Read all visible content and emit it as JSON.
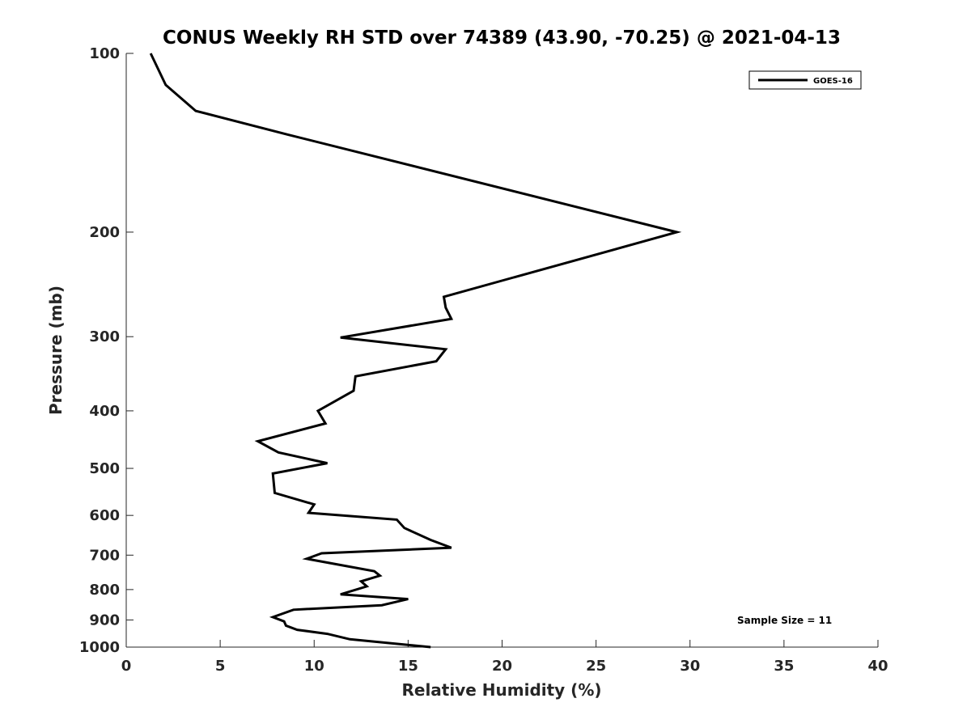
{
  "chart_data": {
    "type": "line",
    "title": "CONUS Weekly RH STD over 74389 (43.90, -70.25) @ 2021-04-13",
    "xlabel": "Relative Humidity (%)",
    "ylabel": "Pressure (mb)",
    "xlim": [
      0,
      40
    ],
    "ylim": [
      100,
      1000
    ],
    "yscale": "log",
    "y_reversed": true,
    "x_ticks": [
      0,
      5,
      10,
      15,
      20,
      25,
      30,
      35,
      40
    ],
    "y_ticks": [
      100,
      200,
      300,
      400,
      500,
      600,
      700,
      800,
      900,
      1000
    ],
    "grid": false,
    "legend_position": "top-right",
    "series": [
      {
        "name": "GOES-16",
        "color": "#000000",
        "x": [
          1.3,
          2.1,
          3.7,
          8.6,
          29.3,
          16.9,
          17.0,
          17.3,
          11.4,
          17.0,
          16.5,
          12.2,
          12.1,
          10.2,
          10.6,
          7.0,
          8.1,
          10.7,
          7.8,
          7.9,
          10.0,
          9.7,
          14.4,
          14.8,
          16.2,
          17.3,
          10.4,
          9.6,
          13.2,
          13.5,
          12.5,
          12.8,
          11.4,
          15.0,
          13.6,
          8.9,
          7.8,
          8.4,
          8.5,
          9.1,
          10.7,
          11.9,
          16.2
        ],
        "y": [
          100,
          113,
          125,
          137,
          200,
          257,
          268,
          280,
          301,
          315,
          330,
          350,
          370,
          400,
          420,
          450,
          470,
          490,
          510,
          550,
          575,
          594,
          610,
          630,
          660,
          680,
          695,
          710,
          745,
          758,
          775,
          790,
          815,
          830,
          850,
          865,
          890,
          905,
          920,
          935,
          950,
          970,
          1000
        ]
      }
    ],
    "legend": [
      "GOES-16"
    ],
    "annotations": [
      "Sample Size = 11"
    ]
  }
}
